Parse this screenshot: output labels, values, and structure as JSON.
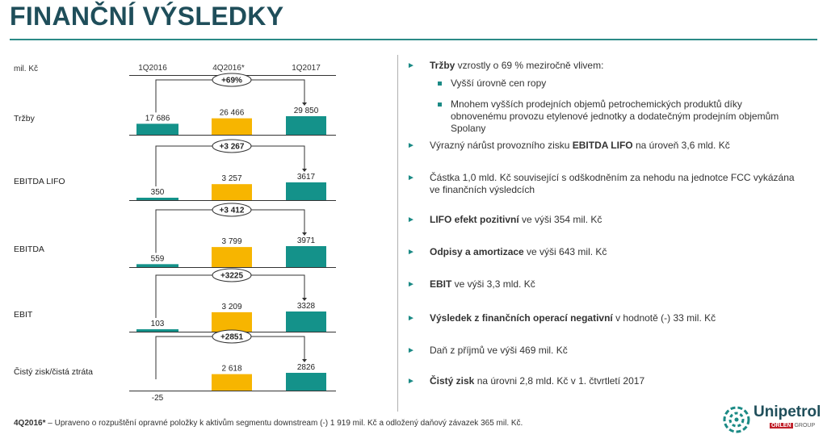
{
  "header": {
    "title": "FINANČNÍ VÝSLEDKY"
  },
  "chart_data": {
    "type": "bar",
    "unit_label": "mil. Kč",
    "categories": [
      "1Q2016",
      "4Q2016*",
      "1Q2017"
    ],
    "rows": [
      {
        "label": "Tržby",
        "values": [
          17686,
          26466,
          29850
        ],
        "value_labels": [
          "17 686",
          "26 466",
          "29 850"
        ],
        "change": "+69%"
      },
      {
        "label": "EBITDA LIFO",
        "values": [
          350,
          3257,
          3617
        ],
        "value_labels": [
          "350",
          "3 257",
          "3617"
        ],
        "change": "+3 267"
      },
      {
        "label": "EBITDA",
        "values": [
          559,
          3799,
          3971
        ],
        "value_labels": [
          "559",
          "3 799",
          "3971"
        ],
        "change": "+3 412"
      },
      {
        "label": "EBIT",
        "values": [
          103,
          3209,
          3328
        ],
        "value_labels": [
          "103",
          "3 209",
          "3328"
        ],
        "change": "+3225"
      },
      {
        "label": "Čistý zisk/čistá ztráta",
        "values": [
          -25,
          2618,
          2826
        ],
        "value_labels": [
          "-25",
          "2 618",
          "2826"
        ],
        "change": "+2851"
      }
    ],
    "colors": {
      "1Q2016": "#14928a",
      "4Q2016*": "#f7b500",
      "1Q2017": "#14928a"
    }
  },
  "bullets": [
    {
      "bold": "Tržby",
      "text": " vzrostly o 69 % meziročně vlivem:"
    },
    {
      "sub": true,
      "text": "Vyšší úrovně cen ropy"
    },
    {
      "sub": true,
      "text": "Mnohem vyšších prodejních objemů petrochemických produktů díky obnovenému provozu etylenové jednotky a dodatečným prodejním objemům Spolany"
    },
    {
      "bold": "",
      "text": "Výrazný nárůst provozního zisku ",
      "bold2": "EBITDA LIFO",
      "text2": " na úroveň 3,6 mld. Kč"
    },
    {
      "bold": "",
      "text": "Částka 1,0 mld. Kč související s odškodněním za nehodu na jednotce FCC vykázána ve finančních výsledcích"
    },
    {
      "bold": "LIFO efekt pozitivní",
      "text": " ve výši 354 mil. Kč"
    },
    {
      "bold": "Odpisy a amortizace",
      "text": " ve výši 643 mil. Kč"
    },
    {
      "bold": "EBIT",
      "text": " ve výši 3,3 mld. Kč"
    },
    {
      "bold": "Výsledek z finančních operací negativní",
      "text": " v hodnotě (-) 33 mil. Kč"
    },
    {
      "bold": "",
      "text": "Daň z příjmů ve výši 469 mil. Kč"
    },
    {
      "bold": "Čistý zisk",
      "text": " na úrovni 2,8 mld. Kč v 1. čtvrtletí 2017"
    }
  ],
  "footnote": {
    "bold": "4Q2016*",
    "text": " – Upraveno o rozpuštění opravné položky k aktivům segmentu downstream (-) 1 919 mil. Kč a odložený daňový závazek 365 mil. Kč."
  },
  "logo": {
    "name": "Unipetrol",
    "group_badge": "ORLEN",
    "group_text": "GROUP"
  }
}
